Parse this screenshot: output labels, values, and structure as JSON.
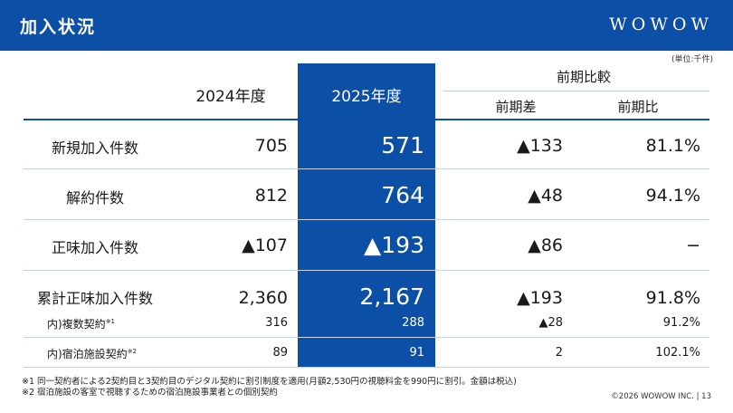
{
  "header": {
    "title": "加入状況",
    "logo": "WOWOW"
  },
  "unit_note": "(単位:千件)",
  "columns": {
    "fy2024": "2024年度",
    "fy2025": "2025年度",
    "comparison_group": "前期比較",
    "diff": "前期差",
    "ratio": "前期比"
  },
  "rows": [
    {
      "label": "新規加入件数",
      "fy2024": "705",
      "fy2025": "571",
      "diff": "▲133",
      "ratio": "81.1%"
    },
    {
      "label": "解約件数",
      "fy2024": "812",
      "fy2025": "764",
      "diff": "▲48",
      "ratio": "94.1%"
    },
    {
      "label": "正味加入件数",
      "fy2024": "▲107",
      "fy2025": "▲193",
      "diff": "▲86",
      "ratio": "−"
    },
    {
      "label": "累計正味加入件数",
      "fy2024": "2,360",
      "fy2025": "2,167",
      "diff": "▲193",
      "ratio": "91.8%"
    },
    {
      "label": "内)複数契約",
      "note_mark": "※1",
      "fy2024": "316",
      "fy2025": "288",
      "diff": "▲28",
      "ratio": "91.2%"
    },
    {
      "label": "内)宿泊施設契約",
      "note_mark": "※2",
      "fy2024": "89",
      "fy2025": "91",
      "diff": "2",
      "ratio": "102.1%"
    }
  ],
  "footnotes": [
    "※1 同一契約者による2契約目と3契約目のデジタル契約に割引制度を適用(月額2,530円の視聴料金を990円に割引。金額は税込)",
    "※2 宿泊施設の客室で視聴するための宿泊施設事業者との個別契約"
  ],
  "copyright": "©2026 WOWOW INC. | 13",
  "colors": {
    "brand_blue": "#0b4fa6",
    "text": "#1a1a1a"
  }
}
